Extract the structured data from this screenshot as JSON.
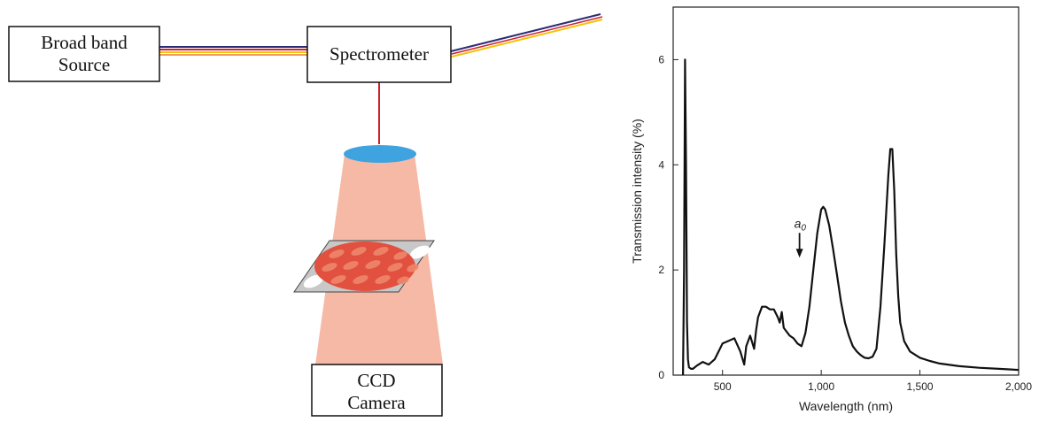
{
  "diagram": {
    "source_label_line1": "Broad band",
    "source_label_line2": "Source",
    "spectrometer_label": "Spectrometer",
    "ccd_label_line1": "CCD",
    "ccd_label_line2": "Camera",
    "colors": {
      "fiber_yellow": "#f2c20c",
      "fiber_red": "#d0202a",
      "fiber_navy": "#2b2d74",
      "fiber_orange": "#f39a5a",
      "beam": "#f6b9a6",
      "lens": "#3ea3de",
      "sample_red": "#e2503f",
      "glass": "#c8c8c8"
    }
  },
  "chart_data": {
    "type": "line",
    "title": "",
    "xlabel": "Wavelength (nm)",
    "ylabel": "Transmission intensity (%)",
    "xlim": [
      250,
      2000
    ],
    "ylim": [
      0,
      7
    ],
    "x_ticks": [
      500,
      1000,
      1500,
      2000
    ],
    "x_tick_labels": [
      "500",
      "1,000",
      "1,500",
      "2,000"
    ],
    "y_ticks": [
      0,
      2,
      4,
      6
    ],
    "y_tick_labels": [
      "0",
      "2",
      "4",
      "6"
    ],
    "annotation": {
      "text": "a",
      "subscript": "0",
      "x": 890,
      "y": 2.2
    },
    "grid": false,
    "series": [
      {
        "x": [
          300,
          305,
          310,
          315,
          320,
          325,
          330,
          340,
          350,
          370,
          400,
          430,
          460,
          480,
          500,
          530,
          560,
          590,
          610,
          620,
          640,
          660,
          670,
          680,
          700,
          720,
          740,
          760,
          780,
          790,
          800,
          810,
          820,
          840,
          860,
          880,
          900,
          920,
          940,
          960,
          980,
          1000,
          1010,
          1020,
          1040,
          1060,
          1080,
          1100,
          1120,
          1140,
          1160,
          1180,
          1200,
          1220,
          1240,
          1260,
          1280,
          1300,
          1320,
          1340,
          1350,
          1360,
          1370,
          1380,
          1390,
          1400,
          1420,
          1450,
          1500,
          1550,
          1600,
          1700,
          1800,
          1900,
          2000
        ],
        "y": [
          0.0,
          2.0,
          6.0,
          4.0,
          1.0,
          0.3,
          0.15,
          0.12,
          0.12,
          0.18,
          0.25,
          0.2,
          0.3,
          0.45,
          0.6,
          0.65,
          0.7,
          0.45,
          0.2,
          0.55,
          0.75,
          0.5,
          0.85,
          1.1,
          1.3,
          1.3,
          1.25,
          1.25,
          1.1,
          1.0,
          1.2,
          0.9,
          0.85,
          0.75,
          0.7,
          0.6,
          0.55,
          0.8,
          1.3,
          2.0,
          2.7,
          3.15,
          3.2,
          3.15,
          2.85,
          2.4,
          1.9,
          1.4,
          1.0,
          0.75,
          0.55,
          0.45,
          0.38,
          0.33,
          0.32,
          0.35,
          0.5,
          1.3,
          2.5,
          3.8,
          4.3,
          4.3,
          3.5,
          2.3,
          1.5,
          1.0,
          0.65,
          0.45,
          0.33,
          0.27,
          0.22,
          0.17,
          0.14,
          0.12,
          0.1
        ]
      }
    ]
  }
}
